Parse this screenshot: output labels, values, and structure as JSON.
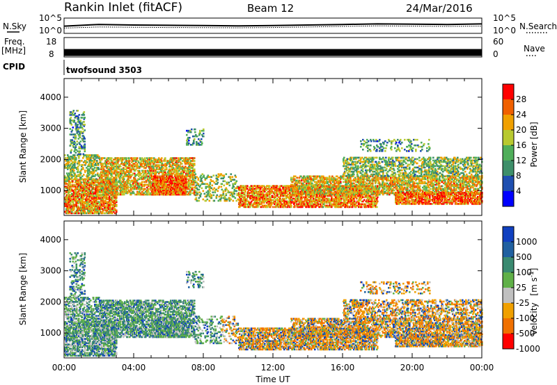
{
  "header": {
    "station": "Rankin Inlet (fitACF)",
    "beam": "Beam 12",
    "date": "24/Mar/2016"
  },
  "colors": {
    "power_scale": [
      "#0000ff",
      "#1f4fb0",
      "#3e8f6a",
      "#4fae5a",
      "#b8c930",
      "#f0a000",
      "#f06000",
      "#ff0000"
    ],
    "velocity_scale": [
      "#1040c0",
      "#2060a0",
      "#3a8a70",
      "#60b048",
      "#c0c0c0",
      "#f0a000",
      "#f07000",
      "#ff0000"
    ]
  },
  "chart_data": [
    {
      "type": "line",
      "panel": "nsky-nsearch",
      "left_label": "N.Sky",
      "right_label": "N.Search",
      "left_ticks": [
        "10^5",
        "10^0"
      ],
      "right_ticks": [
        "10^5",
        "10^0"
      ],
      "x": [
        0,
        2,
        4,
        6,
        8,
        10,
        12,
        14,
        16,
        18,
        20,
        22,
        24
      ],
      "series": [
        {
          "values": [
            30,
            60,
            50,
            45,
            40,
            35,
            40,
            50,
            60,
            70,
            65,
            60,
            70
          ]
        },
        {
          "values": [
            20,
            40,
            35,
            30,
            28,
            25,
            30,
            40,
            50,
            60,
            55,
            50,
            55
          ]
        }
      ]
    },
    {
      "type": "line",
      "panel": "freq-nave",
      "left_label_1": "Freq.",
      "left_label_2": "[MHz]",
      "right_label": "Nave",
      "left_ticks": [
        "18",
        "8"
      ],
      "right_ticks": [
        "60",
        "0"
      ],
      "cpid_label": "CPID",
      "cpid_value": "twofsound 3503",
      "freq_ylim": [
        8,
        18
      ],
      "freq_value": 10.3
    },
    {
      "type": "heatmap",
      "panel": "power",
      "xlabel": "",
      "ylabel": "Slant Range [km]",
      "xlim": [
        0,
        24
      ],
      "ylim": [
        200,
        4600
      ],
      "yticks": [
        "1000",
        "2000",
        "3000",
        "4000"
      ],
      "colorbar_label": "Power [dB]",
      "colorbar_ticks": [
        "4",
        "8",
        "12",
        "16",
        "20",
        "24",
        "28"
      ]
    },
    {
      "type": "heatmap",
      "panel": "velocity",
      "xlabel": "Time UT",
      "ylabel": "Slant Range [km]",
      "xlim": [
        0,
        24
      ],
      "ylim": [
        200,
        4600
      ],
      "xticks": [
        "00:00",
        "04:00",
        "08:00",
        "12:00",
        "16:00",
        "20:00",
        "00:00"
      ],
      "yticks": [
        "1000",
        "2000",
        "3000",
        "4000"
      ],
      "colorbar_label": "Velocity",
      "colorbar_unit_1": "[m s",
      "colorbar_unit_2": "-1",
      "colorbar_unit_3": "]",
      "colorbar_ticks": [
        "1000",
        "500",
        "100",
        "25",
        "-25",
        "-100",
        "-500",
        "-1000"
      ]
    }
  ]
}
